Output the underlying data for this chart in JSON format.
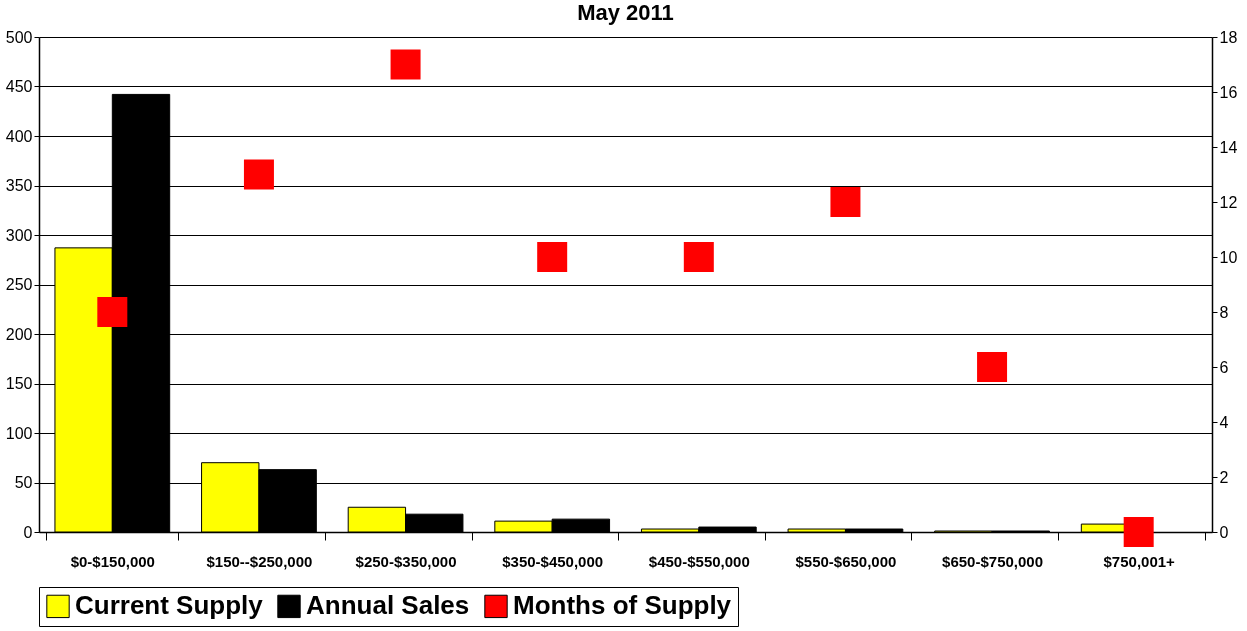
{
  "chart_data": {
    "type": "bar",
    "title": "May 2011",
    "categories": [
      "$0-$150,000",
      "$150--$250,000",
      "$250-$350,000",
      "$350-$450,000",
      "$450-$550,000",
      "$550-$650,000",
      "$650-$750,000",
      "$750,001+"
    ],
    "series": [
      {
        "name": "Current Supply",
        "color": "#ffff00",
        "values": [
          287,
          70,
          25,
          11,
          3,
          3,
          1,
          8
        ]
      },
      {
        "name": "Annual Sales",
        "color": "#000000",
        "values": [
          442,
          63,
          18,
          13,
          5,
          3,
          1,
          null
        ]
      },
      {
        "name": "Months of Supply",
        "color": "#ff0000",
        "type": "scatter",
        "axis": "y2",
        "marker": "square",
        "values": [
          8,
          13,
          17,
          10,
          10,
          12,
          6,
          0
        ]
      }
    ],
    "ylim": [
      0,
      500
    ],
    "yticks": [
      0,
      50,
      100,
      150,
      200,
      250,
      300,
      350,
      400,
      450,
      500
    ],
    "y2lim": [
      0,
      18
    ],
    "y2ticks": [
      0,
      2,
      4,
      6,
      8,
      10,
      12,
      14,
      16,
      18
    ],
    "grid": "y",
    "legend": "bottom"
  }
}
